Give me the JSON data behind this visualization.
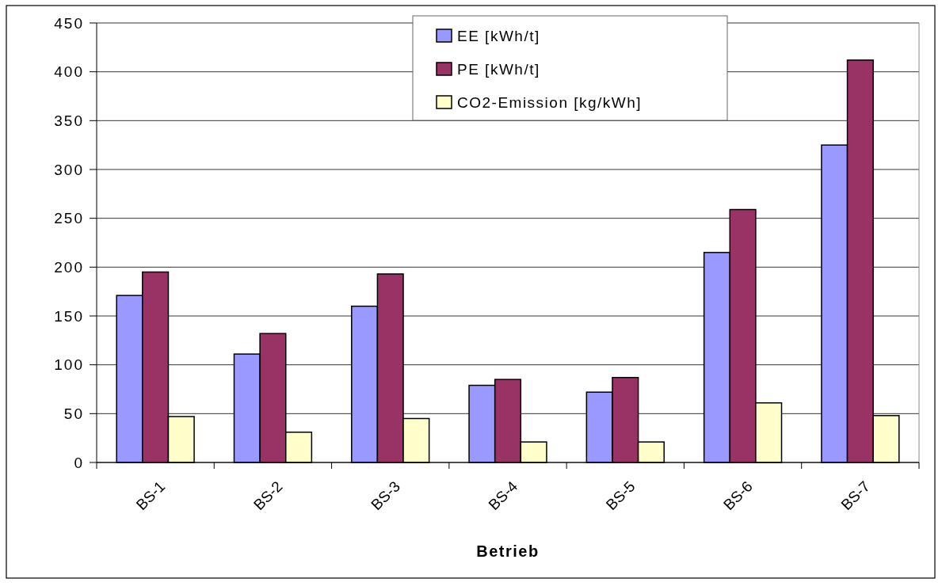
{
  "chart_data": {
    "type": "bar",
    "xlabel": "Betrieb",
    "categories": [
      "BS-1",
      "BS-2",
      "BS-3",
      "BS-4",
      "BS-5",
      "BS-6",
      "BS-7"
    ],
    "series": [
      {
        "name": "EE [kWh/t]",
        "color": "#9999ff",
        "values": [
          171,
          111,
          160,
          79,
          72,
          215,
          325
        ]
      },
      {
        "name": "PE [kWh/t]",
        "color": "#993366",
        "values": [
          195,
          132,
          193,
          85,
          87,
          259,
          412
        ]
      },
      {
        "name": "CO2-Emission [kg/kWh]",
        "color": "#ffffcc",
        "values": [
          47,
          31,
          45,
          21,
          21,
          61,
          48
        ]
      }
    ],
    "ylim": [
      0,
      450
    ],
    "yticks": [
      0,
      50,
      100,
      150,
      200,
      250,
      300,
      350,
      400,
      450
    ],
    "grid": "y",
    "legend": "top"
  }
}
